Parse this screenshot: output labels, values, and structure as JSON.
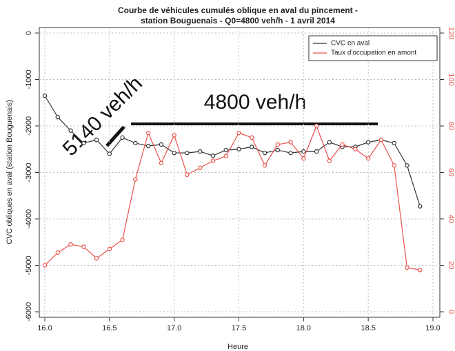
{
  "chart_data": {
    "type": "line",
    "title": "Courbe de véhicules cumulés oblique en aval du pincement -",
    "subtitle": "station Bouguenais - Q0=4800 veh/h - 1 avril 2014",
    "x_label": "Heure",
    "y_label": "CVC obliques en aval (station Bouguenais)",
    "x": [
      16.0,
      16.1,
      16.2,
      16.3,
      16.4,
      16.5,
      16.6,
      16.7,
      16.8,
      16.9,
      17.0,
      17.1,
      17.2,
      17.3,
      17.4,
      17.5,
      17.6,
      17.7,
      17.8,
      17.9,
      18.0,
      18.1,
      18.2,
      18.3,
      18.4,
      18.5,
      18.6,
      18.7,
      18.8,
      18.9
    ],
    "series": [
      {
        "name": "CVC en aval",
        "color": "#333333",
        "values": [
          -1350,
          -1810,
          -2100,
          -2370,
          -2300,
          -2600,
          -2250,
          -2370,
          -2430,
          -2400,
          -2580,
          -2580,
          -2550,
          -2640,
          -2520,
          -2500,
          -2450,
          -2580,
          -2520,
          -2580,
          -2550,
          -2550,
          -2350,
          -2450,
          -2450,
          -2350,
          -2300,
          -2370,
          -2850,
          -3730
        ]
      },
      {
        "name": "Taux d'occupation en amont",
        "color": "#e8504a",
        "axis": "y2",
        "values": [
          20,
          25.5,
          29,
          28,
          23,
          27,
          31,
          57,
          77,
          64,
          76,
          59,
          62,
          65,
          67,
          77,
          75,
          63,
          72,
          73,
          66,
          80,
          65,
          72,
          70,
          66,
          74,
          63,
          19,
          18
        ]
      }
    ],
    "xlim": [
      16,
      19
    ],
    "xticks": [
      {
        "value": 16,
        "label": "16.0"
      },
      16.5,
      {
        "value": 17,
        "label": "17.0"
      },
      17.5,
      {
        "value": 18,
        "label": "18.0"
      },
      18.5,
      {
        "value": 19,
        "label": "19.0"
      }
    ],
    "ylim": [
      -6000,
      0
    ],
    "yticks": [
      0,
      -1000,
      -2000,
      -3000,
      -4000,
      -5000,
      -6000
    ],
    "y2lim": [
      0,
      120
    ],
    "y2ticks": [
      0,
      20,
      40,
      60,
      80,
      100,
      120
    ],
    "grid": true,
    "legend": "top-right",
    "annotations": [
      "4800 veh/h",
      "5140 veh/h"
    ]
  }
}
